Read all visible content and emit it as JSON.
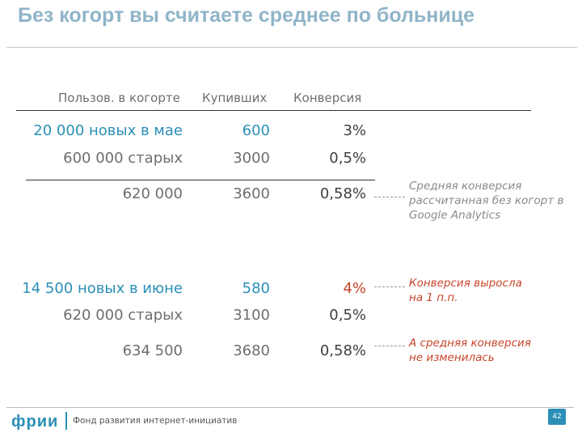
{
  "title": "Без когорт вы считаете среднее по больнице",
  "table": {
    "headers": [
      "Пользов. в когорте",
      "Купивших",
      "Конверсия"
    ],
    "block1": [
      {
        "label": "20 000 новых в мае",
        "bought": "600",
        "conv": "3%"
      },
      {
        "label": "600 000 старых",
        "bought": "3000",
        "conv": "0,5%"
      }
    ],
    "total1": {
      "label": "620 000",
      "bought": "3600",
      "conv": "0,58%"
    },
    "block2": [
      {
        "label": "14 500 новых в июне",
        "bought": "580",
        "conv": "4%"
      },
      {
        "label": "620 000 старых",
        "bought": "3100",
        "conv": "0,5%"
      }
    ],
    "total2": {
      "label": "634 500",
      "bought": "3680",
      "conv": "0,58%"
    }
  },
  "notes": {
    "n1": "Средняя конверсия рассчитанная без когорт в Google Analytics",
    "n2": "Конверсия выросла на 1 п.п.",
    "n3": "А средняя конверсия не изменилась"
  },
  "footer": {
    "logo": "фрии",
    "org": "Фонд развития интернет-инициатив",
    "page": "42"
  },
  "colors": {
    "accent": "#2a8fb6",
    "highlight": "#c8442a",
    "title": "#8fb4c8"
  }
}
